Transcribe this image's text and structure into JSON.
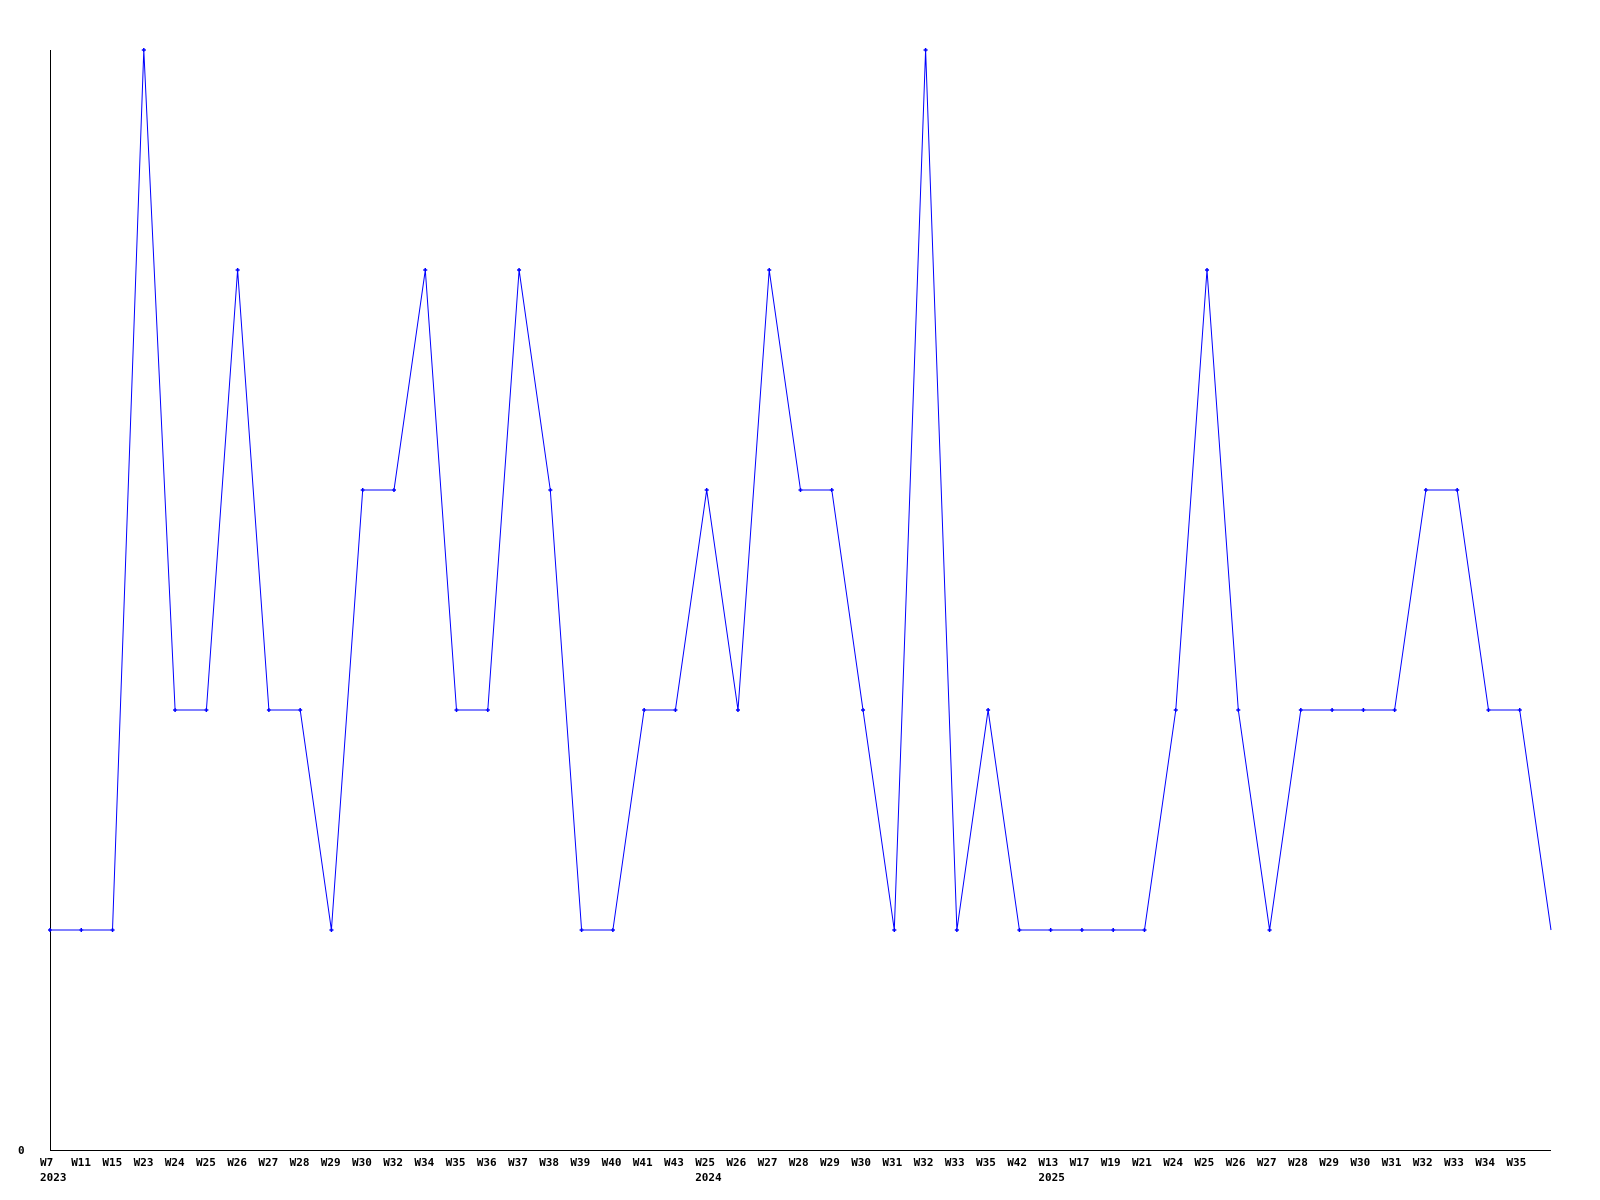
{
  "chart_data": {
    "type": "line",
    "title": "",
    "xlabel": "",
    "ylabel": "",
    "ylim": [
      0,
      5
    ],
    "y_tick_labels": [
      "0"
    ],
    "grid": false,
    "line_color": "#0000ff",
    "axis_color": "#000000",
    "categories": [
      "W7",
      "W11",
      "W15",
      "W23",
      "W24",
      "W25",
      "W26",
      "W27",
      "W28",
      "W29",
      "W30",
      "W32",
      "W34",
      "W35",
      "W36",
      "W37",
      "W38",
      "W39",
      "W40",
      "W41",
      "W43",
      "W25",
      "W26",
      "W27",
      "W28",
      "W29",
      "W30",
      "W31",
      "W32",
      "W33",
      "W35",
      "W42",
      "W13",
      "W17",
      "W19",
      "W21",
      "W24",
      "W25",
      "W26",
      "W27",
      "W28",
      "W29",
      "W30",
      "W31",
      "W32",
      "W33",
      "W34",
      "W35",
      ""
    ],
    "year_labels": [
      {
        "label": "2023",
        "at_index": 0
      },
      {
        "label": "2024",
        "at_index": 21
      },
      {
        "label": "2025",
        "at_index": 32
      }
    ],
    "values": [
      1,
      1,
      1,
      5,
      2,
      2,
      4,
      2,
      2,
      1,
      3,
      3,
      4,
      2,
      2,
      4,
      3,
      1,
      1,
      2,
      2,
      3,
      2,
      4,
      3,
      3,
      2,
      1,
      5,
      1,
      2,
      1,
      1,
      1,
      1,
      1,
      2,
      4,
      2,
      1,
      2,
      2,
      2,
      2,
      3,
      3,
      2,
      2,
      1
    ]
  }
}
